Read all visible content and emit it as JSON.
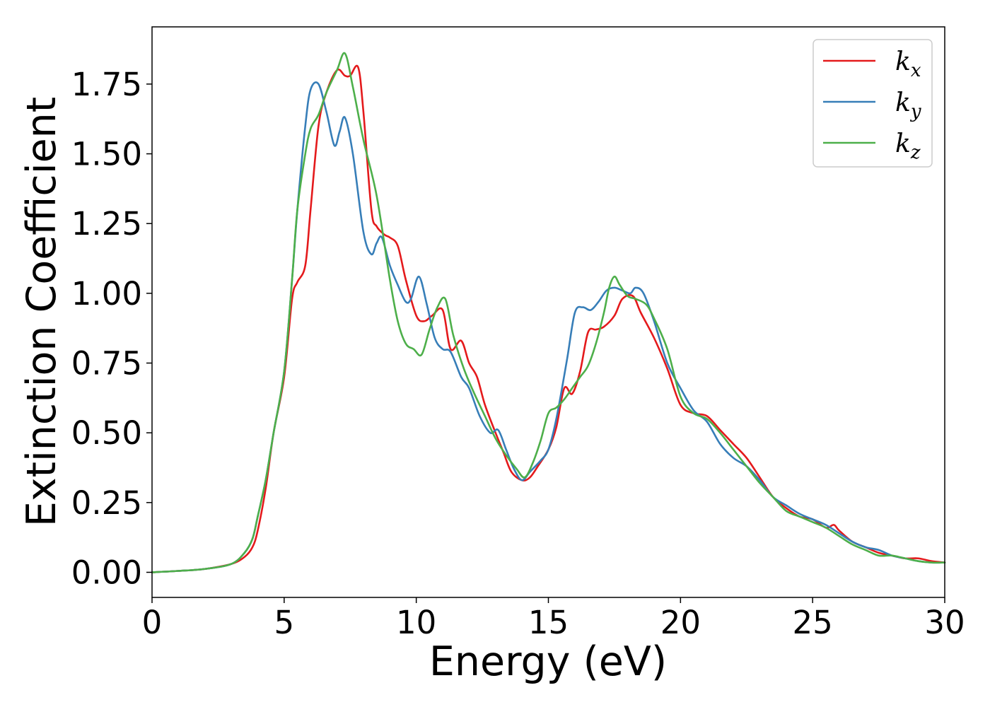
{
  "chart_data": {
    "type": "line",
    "title": "",
    "xlabel": "Energy (eV)",
    "ylabel": "Extinction Coefficient",
    "xlim": [
      0,
      30
    ],
    "ylim": [
      -0.09,
      1.955
    ],
    "xticks": [
      0,
      5,
      10,
      15,
      20,
      25,
      30
    ],
    "xtick_labels": [
      "0",
      "5",
      "10",
      "15",
      "20",
      "25",
      "30"
    ],
    "yticks": [
      0,
      0.25,
      0.5,
      0.75,
      1.0,
      1.25,
      1.5,
      1.75
    ],
    "ytick_labels": [
      "0.00",
      "0.25",
      "0.50",
      "0.75",
      "1.00",
      "1.25",
      "1.50",
      "1.75"
    ],
    "grid": false,
    "legend_position": "top-right",
    "series": [
      {
        "name": "k_x",
        "label_base": "k",
        "label_sub": "x",
        "color": "#e41a1c",
        "x": [
          0,
          1,
          2,
          3,
          3.5,
          3.8,
          4.0,
          4.3,
          4.6,
          5.0,
          5.3,
          5.5,
          5.8,
          6.0,
          6.3,
          6.6,
          7.0,
          7.3,
          7.5,
          7.8,
          8.0,
          8.3,
          8.5,
          8.8,
          9.0,
          9.3,
          9.6,
          10.0,
          10.3,
          10.6,
          11.0,
          11.3,
          11.7,
          12.0,
          12.3,
          12.6,
          13.0,
          13.3,
          13.6,
          14.0,
          14.3,
          14.6,
          15.0,
          15.3,
          15.6,
          15.9,
          16.2,
          16.5,
          16.8,
          17.1,
          17.5,
          17.8,
          18.2,
          18.5,
          19.0,
          19.5,
          20.0,
          20.5,
          21.0,
          21.5,
          22.0,
          22.5,
          23.0,
          23.5,
          24.0,
          24.5,
          25.0,
          25.5,
          25.8,
          26.0,
          26.5,
          27.0,
          27.5,
          28.0,
          28.5,
          29.0,
          29.5,
          30.0
        ],
        "y": [
          0,
          0.005,
          0.012,
          0.03,
          0.055,
          0.09,
          0.15,
          0.3,
          0.5,
          0.7,
          0.98,
          1.04,
          1.1,
          1.3,
          1.6,
          1.72,
          1.8,
          1.78,
          1.78,
          1.81,
          1.65,
          1.3,
          1.24,
          1.21,
          1.2,
          1.17,
          1.05,
          0.92,
          0.9,
          0.92,
          0.94,
          0.8,
          0.83,
          0.75,
          0.7,
          0.6,
          0.5,
          0.43,
          0.36,
          0.33,
          0.34,
          0.38,
          0.44,
          0.52,
          0.66,
          0.64,
          0.72,
          0.86,
          0.87,
          0.88,
          0.92,
          0.98,
          0.99,
          0.93,
          0.84,
          0.73,
          0.6,
          0.57,
          0.56,
          0.51,
          0.46,
          0.41,
          0.34,
          0.27,
          0.23,
          0.2,
          0.19,
          0.16,
          0.17,
          0.15,
          0.11,
          0.09,
          0.07,
          0.06,
          0.05,
          0.05,
          0.04,
          0.035
        ]
      },
      {
        "name": "k_y",
        "label_base": "k",
        "label_sub": "y",
        "color": "#377eb8",
        "x": [
          0,
          1,
          2,
          3,
          3.5,
          3.8,
          4.0,
          4.3,
          4.6,
          5.0,
          5.3,
          5.5,
          5.8,
          6.0,
          6.3,
          6.6,
          6.9,
          7.1,
          7.3,
          7.6,
          8.0,
          8.3,
          8.5,
          8.7,
          9.0,
          9.3,
          9.6,
          9.8,
          10.1,
          10.4,
          10.7,
          11.0,
          11.3,
          11.7,
          12.0,
          12.4,
          12.8,
          13.1,
          13.4,
          13.7,
          14.0,
          14.3,
          14.7,
          15.0,
          15.3,
          15.7,
          16.0,
          16.3,
          16.6,
          16.9,
          17.2,
          17.5,
          17.8,
          18.1,
          18.3,
          18.6,
          19.0,
          19.5,
          20.0,
          20.5,
          21.0,
          21.5,
          22.0,
          22.5,
          23.0,
          23.5,
          24.0,
          24.5,
          25.0,
          25.5,
          26.0,
          26.5,
          27.0,
          27.5,
          28.0,
          28.5,
          29.0,
          29.5,
          30.0
        ],
        "y": [
          0,
          0.005,
          0.012,
          0.03,
          0.07,
          0.12,
          0.2,
          0.33,
          0.5,
          0.72,
          1.05,
          1.3,
          1.6,
          1.73,
          1.75,
          1.65,
          1.53,
          1.58,
          1.63,
          1.5,
          1.22,
          1.14,
          1.18,
          1.2,
          1.1,
          1.03,
          0.97,
          0.98,
          1.06,
          0.96,
          0.84,
          0.8,
          0.79,
          0.7,
          0.66,
          0.56,
          0.5,
          0.51,
          0.44,
          0.37,
          0.33,
          0.36,
          0.4,
          0.44,
          0.55,
          0.76,
          0.93,
          0.95,
          0.94,
          0.97,
          1.01,
          1.02,
          1.01,
          1.0,
          1.02,
          1.0,
          0.9,
          0.75,
          0.66,
          0.58,
          0.54,
          0.46,
          0.41,
          0.38,
          0.33,
          0.27,
          0.24,
          0.21,
          0.19,
          0.17,
          0.14,
          0.11,
          0.09,
          0.08,
          0.06,
          0.05,
          0.04,
          0.035,
          0.035
        ]
      },
      {
        "name": "k_z",
        "label_base": "k",
        "label_sub": "z",
        "color": "#4daf4a",
        "x": [
          0,
          1,
          2,
          3,
          3.5,
          3.8,
          4.0,
          4.3,
          4.6,
          5.0,
          5.3,
          5.5,
          5.8,
          6.0,
          6.3,
          6.6,
          7.0,
          7.3,
          7.6,
          8.0,
          8.5,
          9.0,
          9.3,
          9.6,
          9.9,
          10.2,
          10.5,
          10.8,
          11.1,
          11.4,
          11.8,
          12.2,
          12.6,
          13.0,
          13.4,
          13.8,
          14.1,
          14.4,
          14.7,
          15.0,
          15.3,
          15.6,
          15.9,
          16.2,
          16.5,
          16.8,
          17.1,
          17.3,
          17.5,
          17.7,
          18.0,
          18.3,
          18.7,
          19.0,
          19.5,
          20.0,
          20.5,
          21.0,
          21.5,
          22.0,
          22.5,
          23.0,
          23.5,
          24.0,
          24.5,
          25.0,
          25.5,
          26.0,
          26.5,
          27.0,
          27.5,
          28.0,
          28.5,
          29.0,
          29.5,
          30.0
        ],
        "y": [
          0,
          0.005,
          0.012,
          0.03,
          0.07,
          0.12,
          0.2,
          0.33,
          0.5,
          0.72,
          1.05,
          1.3,
          1.5,
          1.59,
          1.64,
          1.72,
          1.8,
          1.86,
          1.74,
          1.55,
          1.35,
          1.05,
          0.9,
          0.82,
          0.8,
          0.78,
          0.87,
          0.95,
          0.98,
          0.85,
          0.73,
          0.64,
          0.56,
          0.48,
          0.42,
          0.37,
          0.34,
          0.39,
          0.47,
          0.57,
          0.59,
          0.62,
          0.66,
          0.7,
          0.74,
          0.82,
          0.93,
          1.02,
          1.06,
          1.03,
          0.99,
          0.98,
          0.96,
          0.91,
          0.8,
          0.63,
          0.57,
          0.55,
          0.5,
          0.44,
          0.38,
          0.32,
          0.27,
          0.22,
          0.2,
          0.18,
          0.16,
          0.13,
          0.1,
          0.08,
          0.06,
          0.06,
          0.05,
          0.04,
          0.035,
          0.035
        ]
      }
    ]
  }
}
